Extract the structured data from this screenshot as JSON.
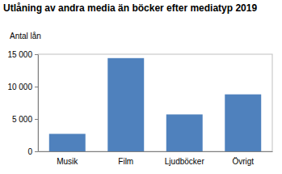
{
  "chart_data": {
    "type": "bar",
    "title": "Utlåning av andra media än böcker efter mediatyp 2019",
    "y_label": "Antal lån",
    "categories": [
      "Musik",
      "Film",
      "Ljudböcker",
      "Övrigt"
    ],
    "values": [
      2700,
      14400,
      5700,
      8800
    ],
    "color": "#4f81bd",
    "ylim": [
      0,
      15000
    ],
    "yticks": [
      0,
      {
        "value": 5000,
        "label": "5 000"
      },
      {
        "value": 10000,
        "label": "10 000"
      },
      {
        "value": 15000,
        "label": "15 000"
      }
    ],
    "grid": false
  }
}
